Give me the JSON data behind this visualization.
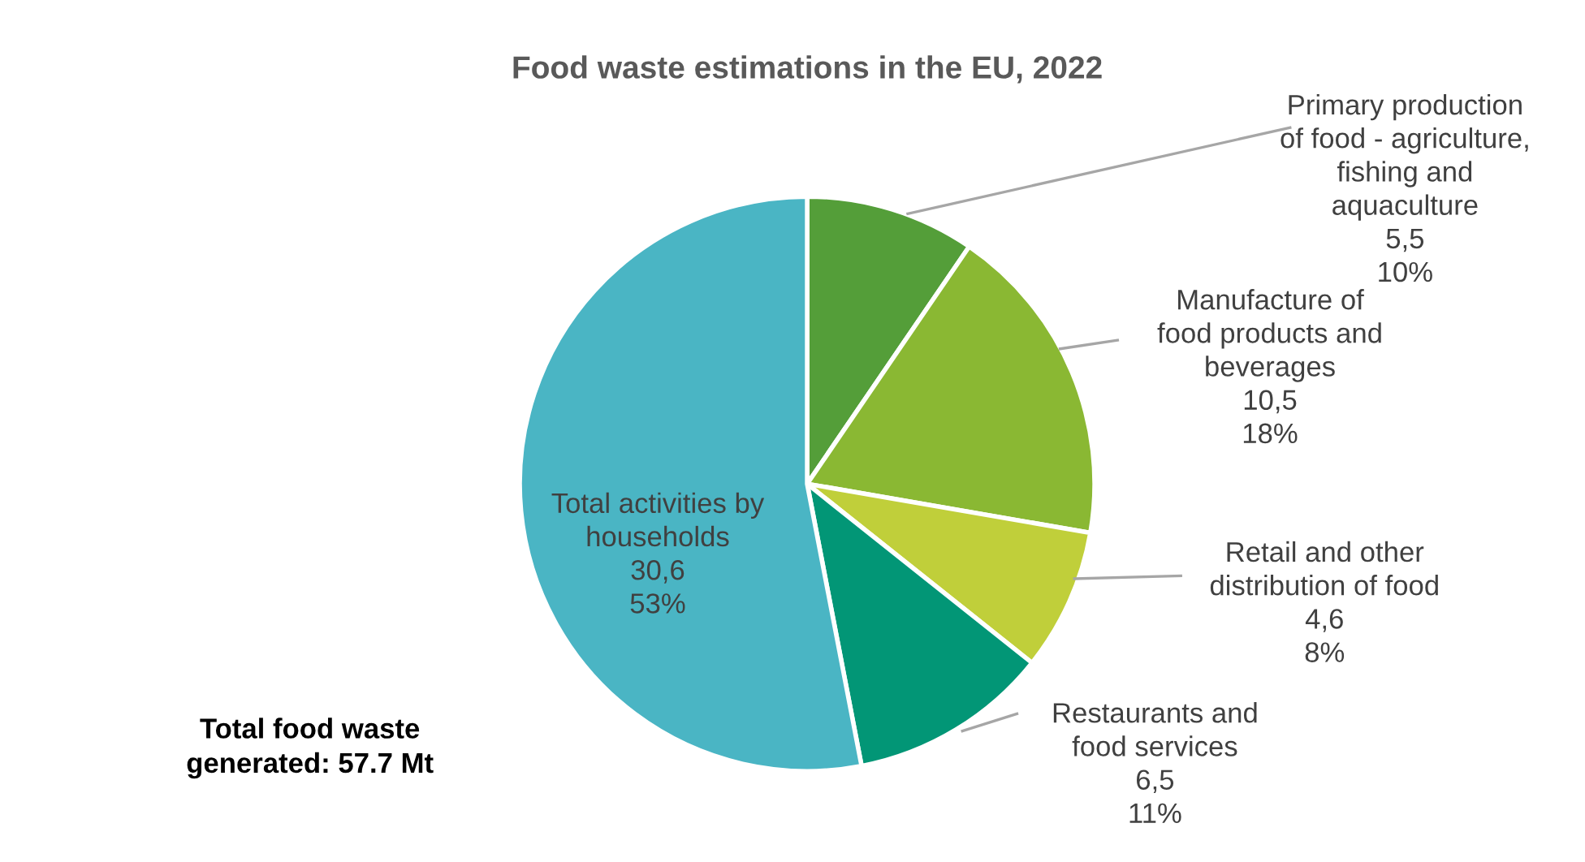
{
  "chart_data": {
    "type": "pie",
    "title": "Food waste estimations in the EU, 2022",
    "categories": [
      "Primary production\nof food - agriculture,\nfishing and\naquaculture",
      "Manufacture of\nfood products and\nbeverages",
      "Retail and other\ndistribution of food",
      "Restaurants and\nfood services",
      "Total activities by\nhouseholds"
    ],
    "values": [
      5.5,
      10.5,
      4.6,
      6.5,
      30.6
    ],
    "colors": [
      "#549e39",
      "#8ab833",
      "#c0cf3a",
      "#029676",
      "#4ab5c4"
    ],
    "value_labels": [
      "5,5\n10%",
      "10,5\n18%",
      "4,6\n8%",
      "6,5\n11%",
      "30,6\n53%"
    ],
    "annotations": [
      "Total food waste\ngenerated: 57.7 Mt"
    ],
    "legend": false
  }
}
